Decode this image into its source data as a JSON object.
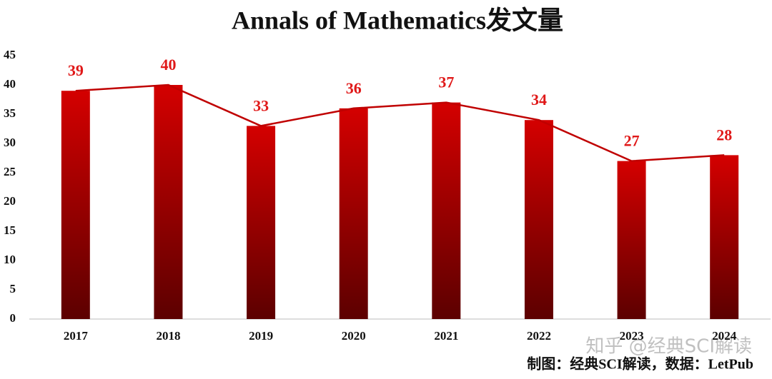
{
  "chart_data": {
    "type": "bar",
    "title": "Annals of Mathematics发文量",
    "categories": [
      "2017",
      "2018",
      "2019",
      "2020",
      "2021",
      "2022",
      "2023",
      "2024"
    ],
    "values": [
      39,
      40,
      33,
      36,
      37,
      34,
      27,
      28
    ],
    "gradient_colors": [
      "#d40000",
      "#5c0000"
    ],
    "line_overlay": true,
    "line_color": "#c00000",
    "label_color": "#e01818",
    "ylim": [
      0,
      45
    ],
    "yticks": [
      0,
      5,
      10,
      15,
      20,
      25,
      30,
      35,
      40,
      45
    ],
    "grid": false,
    "source": "制图：经典SCI解读，数据：LetPub",
    "watermark": "知乎 @经典SCI解读"
  }
}
